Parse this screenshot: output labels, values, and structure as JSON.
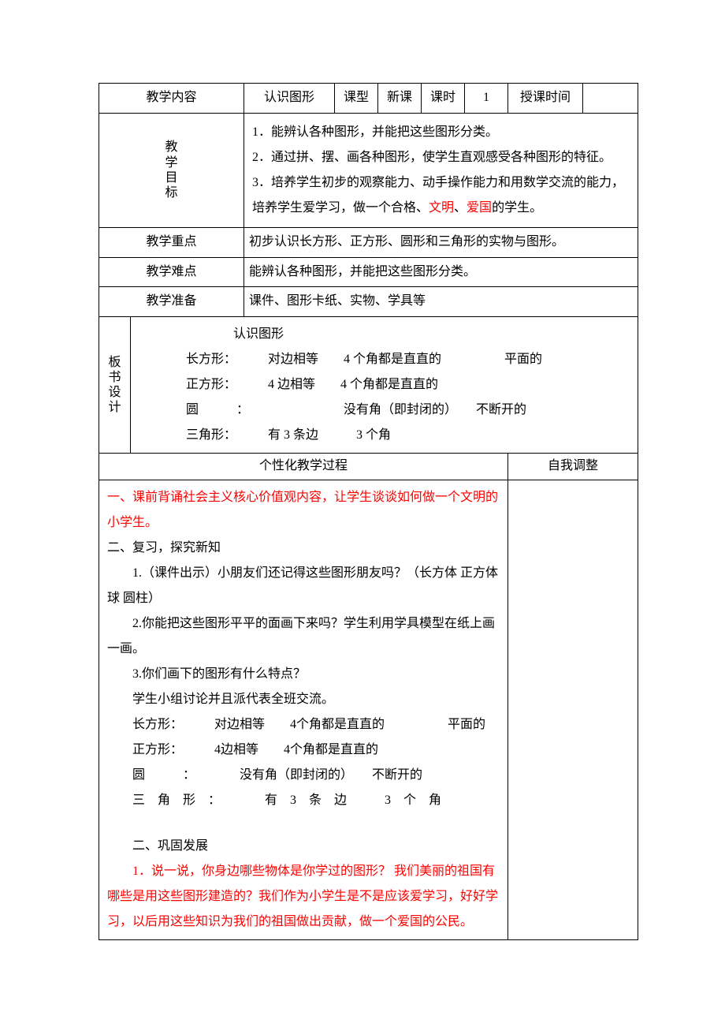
{
  "header": {
    "row1": {
      "label1": "教学内容",
      "val1": "认识图形",
      "label2": "课型",
      "val2": "新课",
      "label3": "课时",
      "val3": "1",
      "label4": "授课时间",
      "val4": ""
    },
    "goals": {
      "label": "教学目标",
      "line1": "1．能辨认各种图形，并能把这些图形分类。",
      "line2": "2．通过拼、摆、画各种图形，使学生直观感受各种图形的特征。",
      "line3a": "3．培养学生初步的观察能力、动手操作能力和用数学交流的能力，培养学生爱学习，做一个合格、",
      "line3_red1": "文明",
      "line3_sep": "、",
      "line3_red2": "爱国",
      "line3b": "的学生。"
    },
    "focus": {
      "label": "教学重点",
      "val": "初步认识长方形、正方形、圆形和三角形的实物与图形。"
    },
    "difficulty": {
      "label": "教学难点",
      "val": "能辨认各种图形，并能把这些图形分类。"
    },
    "prep": {
      "label": "教学准备",
      "val": "课件、图形卡纸、实物、学具等"
    },
    "board": {
      "label": "板书设计",
      "title": "认识图形",
      "line1": "长方形：　　　对边相等　　4 个角都是直直的　　　　　平面的",
      "line2": "正方形：　　　4 边相等　　4 个角都是直直的",
      "line3": "圆　　　：　　　　　　　　没有角（即封闭的）　　不断开的",
      "line4": "三角形：　　　有 3 条边　　　3 个角"
    }
  },
  "process": {
    "header_left": "个性化教学过程",
    "header_right": "自我调整",
    "p1": "一、课前背诵社会主义核心价值观内容，让学生谈谈如何做一个文明的小学生。",
    "p2": "二、复习，探究新知",
    "p3": "1.（课件出示）小朋友们还记得这些图形朋友吗？（长方体 正方体 球 圆柱）",
    "p4": "2.你能把这些图形平平的面画下来吗？学生利用学具模型在纸上画一画。",
    "p5": "3.你们画下的图形有什么特点？",
    "p6": "学生小组讨论并且派代表全班交流。",
    "p7": "长方形：　　　对边相等　　4个角都是直直的　　　　　平面的",
    "p8": "正方形：　　　4边相等　　4个角都是直直的",
    "p9": "圆　　　：　　　　没有角（即封闭的）　　不断开的",
    "p10": "三　角　形　：　　　　有　3　条　边　　　3　个　角",
    "p11": "二、巩固发展",
    "p12": "1．说一说，你身边哪些物体是你学过的图形？ 我们美丽的祖国有哪些是用这些图形建造的？我们作为小学生是不是应该爱学习，好好学习，以后用这些知识为我们的祖国做出贡献，做一个爱国的公民。"
  },
  "colors": {
    "text": "#000000",
    "red": "#ff0000",
    "border": "#000000",
    "background": "#ffffff"
  }
}
